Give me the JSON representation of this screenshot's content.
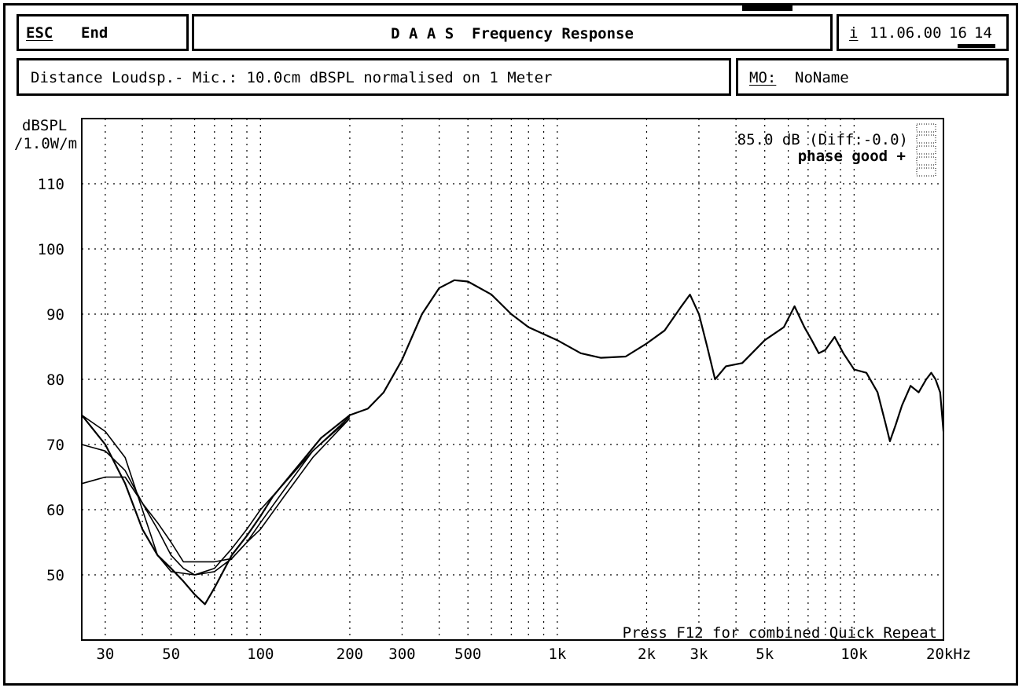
{
  "header": {
    "esc_label": "ESC",
    "end_label": "End",
    "title": "D A A S  Frequency Response",
    "info_key": "i",
    "date": "11.06.00",
    "time_hour": "16",
    "time_min": "14"
  },
  "info": {
    "distance_text": "Distance Loudsp.- Mic.: 10.0cm dBSPL normalised on 1 Meter",
    "mo_label": "MO:",
    "mo_value": "NoName"
  },
  "chart_data": {
    "type": "line",
    "y_label_line1": "dBSPL",
    "y_label_line2": "/1.0W/m",
    "x_scale": "log",
    "xlim": [
      25,
      20000
    ],
    "ylim": [
      40,
      120
    ],
    "grid": true,
    "y_ticks": [
      110,
      100,
      90,
      80,
      70,
      60,
      50
    ],
    "x_ticks": [
      {
        "value": 30,
        "label": "30"
      },
      {
        "value": 50,
        "label": "50"
      },
      {
        "value": 100,
        "label": "100"
      },
      {
        "value": 200,
        "label": "200"
      },
      {
        "value": 300,
        "label": "300"
      },
      {
        "value": 500,
        "label": "500"
      },
      {
        "value": 1000,
        "label": "1k"
      },
      {
        "value": 2000,
        "label": "2k"
      },
      {
        "value": 3000,
        "label": "3k"
      },
      {
        "value": 5000,
        "label": "5k"
      },
      {
        "value": 10000,
        "label": "10k"
      },
      {
        "value": 20000,
        "label": "20kHz"
      }
    ],
    "x_grid": [
      30,
      40,
      50,
      60,
      70,
      80,
      90,
      100,
      200,
      300,
      400,
      500,
      600,
      700,
      800,
      900,
      1000,
      2000,
      3000,
      4000,
      5000,
      6000,
      7000,
      8000,
      9000,
      10000,
      20000
    ],
    "annotation_level": "85.0 dB (Diff:-0.0)",
    "annotation_phase": "phase good +",
    "footer_note": "Press F12 for combined Quick Repeat",
    "series": [
      {
        "values": [
          [
            25,
            74.5
          ],
          [
            30,
            70
          ],
          [
            35,
            64
          ],
          [
            40,
            57
          ],
          [
            45,
            53
          ],
          [
            50,
            51
          ],
          [
            55,
            49
          ],
          [
            60,
            47
          ],
          [
            65,
            45.5
          ],
          [
            70,
            48
          ],
          [
            80,
            53
          ],
          [
            90,
            56
          ],
          [
            100,
            59
          ],
          [
            110,
            62
          ],
          [
            130,
            66
          ],
          [
            160,
            71
          ],
          [
            200,
            74.5
          ],
          [
            230,
            75.5
          ],
          [
            260,
            78
          ],
          [
            300,
            83
          ],
          [
            350,
            90
          ],
          [
            400,
            94
          ],
          [
            450,
            95.2
          ],
          [
            500,
            95
          ],
          [
            600,
            93
          ],
          [
            700,
            90
          ],
          [
            800,
            88
          ],
          [
            1000,
            86
          ],
          [
            1200,
            84
          ],
          [
            1400,
            83.3
          ],
          [
            1700,
            83.5
          ],
          [
            2000,
            85.5
          ],
          [
            2300,
            87.5
          ],
          [
            2600,
            91
          ],
          [
            2800,
            93
          ],
          [
            3000,
            90
          ],
          [
            3200,
            85
          ],
          [
            3400,
            80
          ],
          [
            3700,
            82
          ],
          [
            4200,
            82.5
          ],
          [
            5000,
            86
          ],
          [
            5800,
            88
          ],
          [
            6300,
            91.2
          ],
          [
            6800,
            88
          ],
          [
            7200,
            86
          ],
          [
            7600,
            84
          ],
          [
            8000,
            84.5
          ],
          [
            8600,
            86.5
          ],
          [
            9200,
            84
          ],
          [
            10000,
            81.5
          ],
          [
            11000,
            81
          ],
          [
            12000,
            78
          ],
          [
            12800,
            73
          ],
          [
            13200,
            70.5
          ],
          [
            13800,
            73
          ],
          [
            14500,
            76
          ],
          [
            15500,
            79
          ],
          [
            16500,
            78
          ],
          [
            17500,
            80
          ],
          [
            18200,
            81
          ],
          [
            18800,
            80
          ],
          [
            19500,
            78
          ],
          [
            20000,
            72
          ]
        ]
      },
      {
        "values": [
          [
            25,
            70
          ],
          [
            30,
            69
          ],
          [
            35,
            66
          ],
          [
            40,
            61
          ],
          [
            45,
            57
          ],
          [
            50,
            53
          ],
          [
            55,
            51
          ],
          [
            60,
            50
          ],
          [
            70,
            50.5
          ],
          [
            80,
            52.5
          ],
          [
            90,
            55
          ],
          [
            100,
            58
          ],
          [
            120,
            63
          ],
          [
            150,
            69
          ],
          [
            200,
            74
          ]
        ]
      },
      {
        "values": [
          [
            25,
            64
          ],
          [
            30,
            65
          ],
          [
            35,
            65
          ],
          [
            40,
            61
          ],
          [
            45,
            58
          ],
          [
            50,
            55
          ],
          [
            55,
            52
          ],
          [
            60,
            52
          ],
          [
            70,
            52
          ],
          [
            80,
            52.5
          ],
          [
            90,
            55
          ],
          [
            100,
            57
          ],
          [
            120,
            62
          ],
          [
            150,
            68
          ],
          [
            200,
            74
          ]
        ]
      },
      {
        "values": [
          [
            25,
            74.5
          ],
          [
            30,
            72
          ],
          [
            35,
            68
          ],
          [
            40,
            60
          ],
          [
            45,
            53
          ],
          [
            50,
            50.5
          ],
          [
            60,
            50
          ],
          [
            70,
            51
          ],
          [
            80,
            54
          ],
          [
            90,
            57
          ],
          [
            100,
            60
          ],
          [
            120,
            64
          ],
          [
            150,
            69
          ],
          [
            200,
            74.3
          ]
        ]
      }
    ]
  }
}
